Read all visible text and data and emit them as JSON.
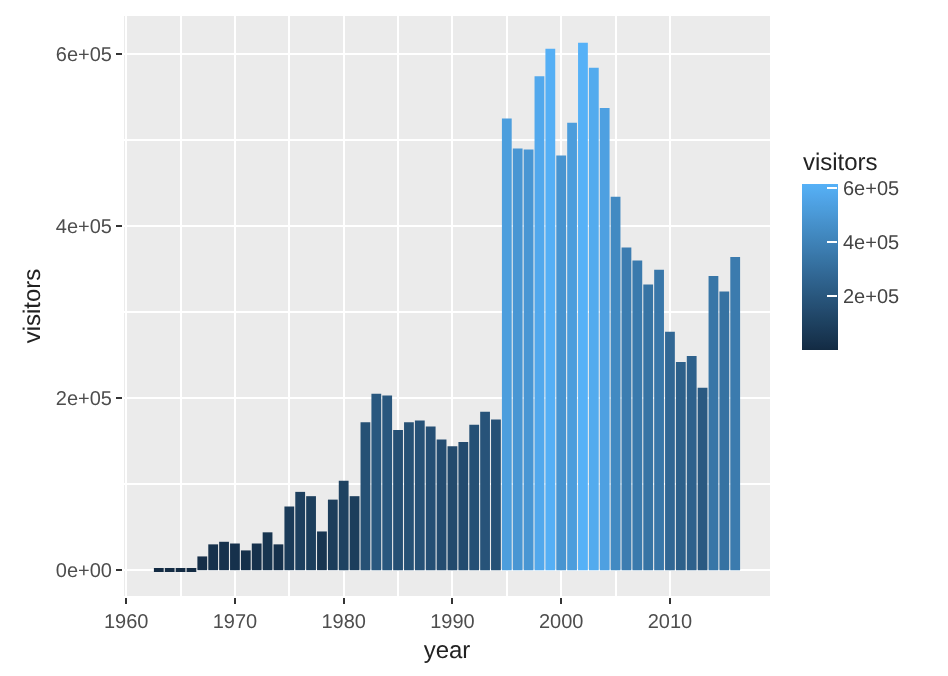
{
  "chart_data": {
    "type": "bar",
    "xlabel": "year",
    "ylabel": "visitors",
    "clabel": "visitors",
    "x": [
      1963,
      1964,
      1965,
      1966,
      1967,
      1968,
      1969,
      1970,
      1971,
      1972,
      1973,
      1974,
      1975,
      1976,
      1977,
      1978,
      1979,
      1980,
      1981,
      1982,
      1983,
      1984,
      1985,
      1986,
      1987,
      1988,
      1989,
      1990,
      1991,
      1992,
      1993,
      1994,
      1995,
      1996,
      1997,
      1998,
      1999,
      2000,
      2001,
      2002,
      2003,
      2004,
      2005,
      2006,
      2007,
      2008,
      2009,
      2010,
      2011,
      2012,
      2013,
      2014,
      2015,
      2016
    ],
    "values": [
      2000,
      2000,
      2000,
      1000,
      16000,
      30000,
      33000,
      31000,
      23000,
      31000,
      44000,
      30000,
      74000,
      91000,
      86000,
      45000,
      82000,
      104000,
      86000,
      172000,
      205000,
      203000,
      163000,
      172000,
      174000,
      167000,
      152000,
      144000,
      149000,
      169000,
      184000,
      175000,
      525000,
      490000,
      489000,
      574000,
      606000,
      482000,
      520000,
      613000,
      584000,
      537000,
      434000,
      375000,
      360000,
      332000,
      349000,
      277000,
      242000,
      249000,
      212000,
      342000,
      324000,
      364000
    ],
    "colors": [
      "#132b43",
      "#132b43",
      "#132b43",
      "#132b43",
      "#152e48",
      "#16314c",
      "#17324d",
      "#16314c",
      "#15304a",
      "#16314c",
      "#183550",
      "#16314c",
      "#1b3b59",
      "#1d3f5e",
      "#1c3e5c",
      "#183550",
      "#1c3d5b",
      "#1e4261",
      "#1c3e5c",
      "#265175",
      "#29587f",
      "#29577e",
      "#254f73",
      "#265175",
      "#265176",
      "#254f74",
      "#244c70",
      "#234a6d",
      "#234b6f",
      "#255075",
      "#275379",
      "#265176",
      "#4c9edd",
      "#4996d3",
      "#4996d3",
      "#52a8ec",
      "#55aff5",
      "#4894d0",
      "#4c9ddc",
      "#56b1f7",
      "#53abee",
      "#4ea0e1",
      "#428ac2",
      "#3c7db1",
      "#3a7aad",
      "#3774a4",
      "#3977a9",
      "#316794",
      "#2d608a",
      "#2e618c",
      "#2a5981",
      "#3876a7",
      "#3672a2",
      "#3b7bae"
    ],
    "clim": [
      1000,
      613000
    ],
    "cticks": [
      {
        "value": 200000,
        "label": "2e+05"
      },
      {
        "value": 400000,
        "label": "4e+05"
      },
      {
        "value": 600000,
        "label": "6e+05"
      }
    ],
    "xlim": [
      1959.8,
      2019.2
    ],
    "xticks": [
      1960,
      1970,
      1980,
      1990,
      2000,
      2010
    ],
    "ylim": [
      -30000,
      644000
    ],
    "yticks": [
      {
        "value": 0,
        "label": "0e+00"
      },
      {
        "value": 200000,
        "label": "2e+05"
      },
      {
        "value": 400000,
        "label": "4e+05"
      },
      {
        "value": 600000,
        "label": "6e+05"
      }
    ],
    "grid": true
  }
}
